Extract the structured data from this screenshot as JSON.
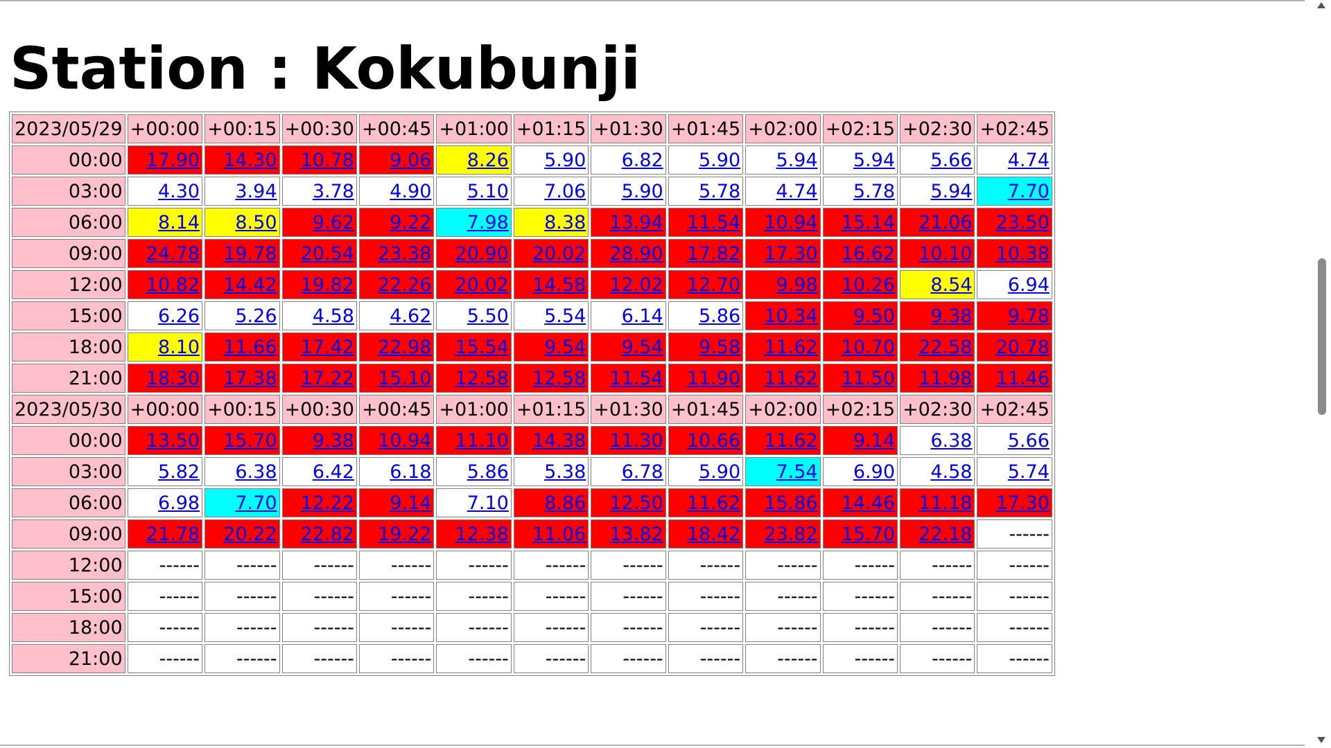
{
  "page": {
    "title": "Station : Kokubunji"
  },
  "table": {
    "offsets": [
      "+00:00",
      "+00:15",
      "+00:30",
      "+00:45",
      "+01:00",
      "+01:15",
      "+01:30",
      "+01:45",
      "+02:00",
      "+02:15",
      "+02:30",
      "+02:45"
    ],
    "days": [
      {
        "date": "2023/05/29",
        "rows": [
          {
            "time": "00:00",
            "cells": [
              [
                "17.90",
                "red"
              ],
              [
                "14.30",
                "red"
              ],
              [
                "10.78",
                "red"
              ],
              [
                "9.06",
                "red"
              ],
              [
                "8.26",
                "yellow"
              ],
              [
                "5.90",
                "white"
              ],
              [
                "6.82",
                "white"
              ],
              [
                "5.90",
                "white"
              ],
              [
                "5.94",
                "white"
              ],
              [
                "5.94",
                "white"
              ],
              [
                "5.66",
                "white"
              ],
              [
                "4.74",
                "white"
              ]
            ]
          },
          {
            "time": "03:00",
            "cells": [
              [
                "4.30",
                "white"
              ],
              [
                "3.94",
                "white"
              ],
              [
                "3.78",
                "white"
              ],
              [
                "4.90",
                "white"
              ],
              [
                "5.10",
                "white"
              ],
              [
                "7.06",
                "white"
              ],
              [
                "5.90",
                "white"
              ],
              [
                "5.78",
                "white"
              ],
              [
                "4.74",
                "white"
              ],
              [
                "5.78",
                "white"
              ],
              [
                "5.94",
                "white"
              ],
              [
                "7.70",
                "cyan"
              ]
            ]
          },
          {
            "time": "06:00",
            "cells": [
              [
                "8.14",
                "yellow"
              ],
              [
                "8.50",
                "yellow"
              ],
              [
                "9.62",
                "red"
              ],
              [
                "9.22",
                "red"
              ],
              [
                "7.98",
                "cyan"
              ],
              [
                "8.38",
                "yellow"
              ],
              [
                "13.94",
                "red"
              ],
              [
                "11.54",
                "red"
              ],
              [
                "10.94",
                "red"
              ],
              [
                "15.14",
                "red"
              ],
              [
                "21.06",
                "red"
              ],
              [
                "23.50",
                "red"
              ]
            ]
          },
          {
            "time": "09:00",
            "cells": [
              [
                "24.78",
                "red"
              ],
              [
                "19.78",
                "red"
              ],
              [
                "20.54",
                "red"
              ],
              [
                "23.38",
                "red"
              ],
              [
                "20.90",
                "red"
              ],
              [
                "20.02",
                "red"
              ],
              [
                "28.90",
                "red"
              ],
              [
                "17.82",
                "red"
              ],
              [
                "17.30",
                "red"
              ],
              [
                "16.62",
                "red"
              ],
              [
                "10.10",
                "red"
              ],
              [
                "10.38",
                "red"
              ]
            ]
          },
          {
            "time": "12:00",
            "cells": [
              [
                "10.82",
                "red"
              ],
              [
                "14.42",
                "red"
              ],
              [
                "19.82",
                "red"
              ],
              [
                "22.26",
                "red"
              ],
              [
                "20.02",
                "red"
              ],
              [
                "14.58",
                "red"
              ],
              [
                "12.02",
                "red"
              ],
              [
                "12.70",
                "red"
              ],
              [
                "9.98",
                "red"
              ],
              [
                "10.26",
                "red"
              ],
              [
                "8.54",
                "yellow"
              ],
              [
                "6.94",
                "white"
              ]
            ]
          },
          {
            "time": "15:00",
            "cells": [
              [
                "6.26",
                "white"
              ],
              [
                "5.26",
                "white"
              ],
              [
                "4.58",
                "white"
              ],
              [
                "4.62",
                "white"
              ],
              [
                "5.50",
                "white"
              ],
              [
                "5.54",
                "white"
              ],
              [
                "6.14",
                "white"
              ],
              [
                "5.86",
                "white"
              ],
              [
                "10.34",
                "red"
              ],
              [
                "9.50",
                "red"
              ],
              [
                "9.38",
                "red"
              ],
              [
                "9.78",
                "red"
              ]
            ]
          },
          {
            "time": "18:00",
            "cells": [
              [
                "8.10",
                "yellow"
              ],
              [
                "11.66",
                "red"
              ],
              [
                "17.42",
                "red"
              ],
              [
                "22.98",
                "red"
              ],
              [
                "15.54",
                "red"
              ],
              [
                "9.54",
                "red"
              ],
              [
                "9.54",
                "red"
              ],
              [
                "9.58",
                "red"
              ],
              [
                "11.62",
                "red"
              ],
              [
                "10.70",
                "red"
              ],
              [
                "22.58",
                "red"
              ],
              [
                "20.78",
                "red"
              ]
            ]
          },
          {
            "time": "21:00",
            "cells": [
              [
                "18.30",
                "red"
              ],
              [
                "17.38",
                "red"
              ],
              [
                "17.22",
                "red"
              ],
              [
                "15.10",
                "red"
              ],
              [
                "12.58",
                "red"
              ],
              [
                "12.58",
                "red"
              ],
              [
                "11.54",
                "red"
              ],
              [
                "11.90",
                "red"
              ],
              [
                "11.62",
                "red"
              ],
              [
                "11.50",
                "red"
              ],
              [
                "11.98",
                "red"
              ],
              [
                "11.46",
                "red"
              ]
            ]
          }
        ]
      },
      {
        "date": "2023/05/30",
        "rows": [
          {
            "time": "00:00",
            "cells": [
              [
                "13.50",
                "red"
              ],
              [
                "15.70",
                "red"
              ],
              [
                "9.38",
                "red"
              ],
              [
                "10.94",
                "red"
              ],
              [
                "11.10",
                "red"
              ],
              [
                "14.38",
                "red"
              ],
              [
                "11.30",
                "red"
              ],
              [
                "10.66",
                "red"
              ],
              [
                "11.62",
                "red"
              ],
              [
                "9.14",
                "red"
              ],
              [
                "6.38",
                "white"
              ],
              [
                "5.66",
                "white"
              ]
            ]
          },
          {
            "time": "03:00",
            "cells": [
              [
                "5.82",
                "white"
              ],
              [
                "6.38",
                "white"
              ],
              [
                "6.42",
                "white"
              ],
              [
                "6.18",
                "white"
              ],
              [
                "5.86",
                "white"
              ],
              [
                "5.38",
                "white"
              ],
              [
                "6.78",
                "white"
              ],
              [
                "5.90",
                "white"
              ],
              [
                "7.54",
                "cyan"
              ],
              [
                "6.90",
                "white"
              ],
              [
                "4.58",
                "white"
              ],
              [
                "5.74",
                "white"
              ]
            ]
          },
          {
            "time": "06:00",
            "cells": [
              [
                "6.98",
                "white"
              ],
              [
                "7.70",
                "cyan"
              ],
              [
                "12.22",
                "red"
              ],
              [
                "9.14",
                "red"
              ],
              [
                "7.10",
                "white"
              ],
              [
                "8.86",
                "red"
              ],
              [
                "12.50",
                "red"
              ],
              [
                "11.62",
                "red"
              ],
              [
                "15.86",
                "red"
              ],
              [
                "14.46",
                "red"
              ],
              [
                "11.18",
                "red"
              ],
              [
                "17.30",
                "red"
              ]
            ]
          },
          {
            "time": "09:00",
            "cells": [
              [
                "21.78",
                "red"
              ],
              [
                "20.22",
                "red"
              ],
              [
                "22.82",
                "red"
              ],
              [
                "19.22",
                "red"
              ],
              [
                "12.38",
                "red"
              ],
              [
                "11.06",
                "red"
              ],
              [
                "13.82",
                "red"
              ],
              [
                "18.42",
                "red"
              ],
              [
                "23.82",
                "red"
              ],
              [
                "15.70",
                "red"
              ],
              [
                "22.18",
                "red"
              ],
              [
                "------",
                "empty"
              ]
            ]
          },
          {
            "time": "12:00",
            "cells": [
              [
                "------",
                "empty"
              ],
              [
                "------",
                "empty"
              ],
              [
                "------",
                "empty"
              ],
              [
                "------",
                "empty"
              ],
              [
                "------",
                "empty"
              ],
              [
                "------",
                "empty"
              ],
              [
                "------",
                "empty"
              ],
              [
                "------",
                "empty"
              ],
              [
                "------",
                "empty"
              ],
              [
                "------",
                "empty"
              ],
              [
                "------",
                "empty"
              ],
              [
                "------",
                "empty"
              ]
            ]
          },
          {
            "time": "15:00",
            "cells": [
              [
                "------",
                "empty"
              ],
              [
                "------",
                "empty"
              ],
              [
                "------",
                "empty"
              ],
              [
                "------",
                "empty"
              ],
              [
                "------",
                "empty"
              ],
              [
                "------",
                "empty"
              ],
              [
                "------",
                "empty"
              ],
              [
                "------",
                "empty"
              ],
              [
                "------",
                "empty"
              ],
              [
                "------",
                "empty"
              ],
              [
                "------",
                "empty"
              ],
              [
                "------",
                "empty"
              ]
            ]
          },
          {
            "time": "18:00",
            "cells": [
              [
                "------",
                "empty"
              ],
              [
                "------",
                "empty"
              ],
              [
                "------",
                "empty"
              ],
              [
                "------",
                "empty"
              ],
              [
                "------",
                "empty"
              ],
              [
                "------",
                "empty"
              ],
              [
                "------",
                "empty"
              ],
              [
                "------",
                "empty"
              ],
              [
                "------",
                "empty"
              ],
              [
                "------",
                "empty"
              ],
              [
                "------",
                "empty"
              ],
              [
                "------",
                "empty"
              ]
            ]
          },
          {
            "time": "21:00",
            "cells": [
              [
                "------",
                "empty"
              ],
              [
                "------",
                "empty"
              ],
              [
                "------",
                "empty"
              ],
              [
                "------",
                "empty"
              ],
              [
                "------",
                "empty"
              ],
              [
                "------",
                "empty"
              ],
              [
                "------",
                "empty"
              ],
              [
                "------",
                "empty"
              ],
              [
                "------",
                "empty"
              ],
              [
                "------",
                "empty"
              ],
              [
                "------",
                "empty"
              ],
              [
                "------",
                "empty"
              ]
            ]
          }
        ]
      }
    ]
  },
  "colors": {
    "header_bg": "#ffc0cb",
    "red": "#ff0000",
    "yellow": "#ffff00",
    "cyan": "#00ffff",
    "white": "#ffffff",
    "link": "#0000ee"
  },
  "scrollbar": {
    "up_icon": "scroll-up-arrow-icon",
    "down_icon": "scroll-down-arrow-icon"
  }
}
